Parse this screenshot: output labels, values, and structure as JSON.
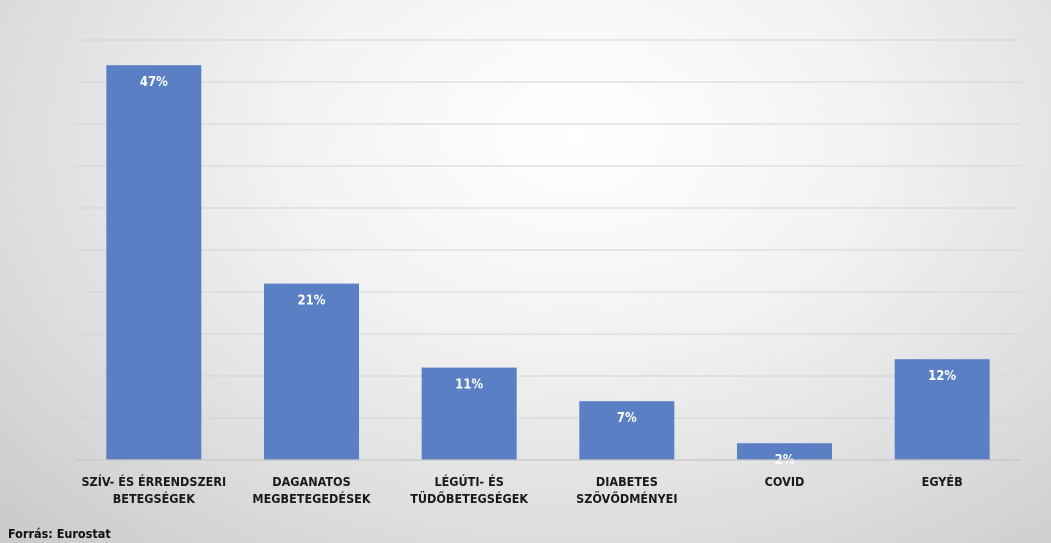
{
  "source_label": "Forrás: Eurostat",
  "chart_data": {
    "type": "bar",
    "title": "",
    "xlabel": "",
    "ylabel": "",
    "categories": [
      [
        "SZÍV- ÉS ÉRRENDSZERI",
        "BETEGSÉGEK"
      ],
      [
        "DAGANATOS",
        "MEGBETEGEDÉSEK"
      ],
      [
        "LÉGÚTI- ÉS",
        "TÜDŐBETEGSÉGEK"
      ],
      [
        "DIABETES",
        "SZÖVŐDMÉNYEI"
      ],
      [
        "COVID"
      ],
      [
        "EGYÉB"
      ]
    ],
    "values": [
      47,
      21,
      11,
      7,
      2,
      12
    ],
    "value_labels": [
      "47%",
      "21%",
      "11%",
      "7%",
      "2%",
      "12%"
    ],
    "unit": "%",
    "ylim": [
      0,
      50
    ],
    "grid": true,
    "legend": "none",
    "bar_color": "#5b7fc4"
  }
}
